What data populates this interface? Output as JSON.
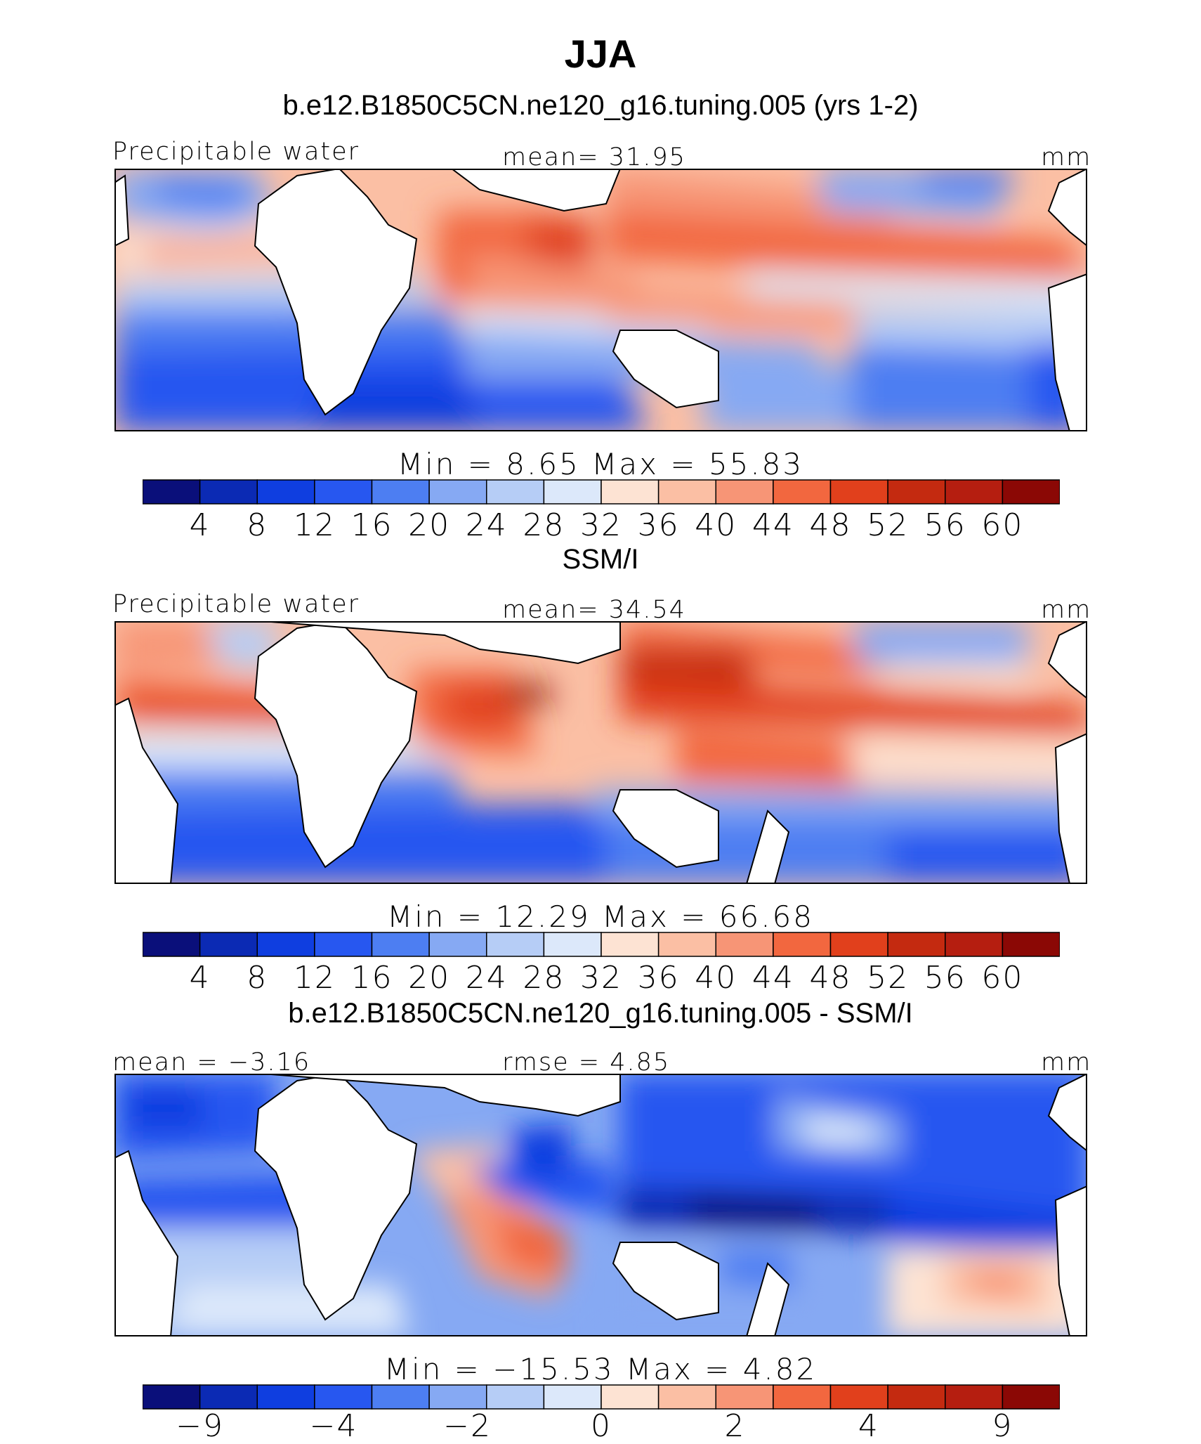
{
  "title": "JJA",
  "chart_data": [
    {
      "type": "heatmap",
      "title": "b.e12.B1850C5CN.ne120_g16.tuning.005 (yrs 1-2)",
      "left_label": "Precipitable water",
      "center_label": "mean=   31.95",
      "units": "mm",
      "minmax": "Min =    8.65  Max =    55.83",
      "min": 8.65,
      "max": 55.83,
      "mean": 31.95,
      "colorbar_ticks": [
        "4",
        "8",
        "12",
        "16",
        "20",
        "24",
        "28",
        "32",
        "36",
        "40",
        "44",
        "48",
        "52",
        "56",
        "60"
      ],
      "colorbar_colors": [
        "#0a0f7a",
        "#0b2ab4",
        "#0f3ee0",
        "#2757f0",
        "#4d7ef2",
        "#86a9f3",
        "#b6cdf6",
        "#dce8fa",
        "#fde3d3",
        "#fbbfa4",
        "#f79576",
        "#f2673f",
        "#e1401c",
        "#c42a10",
        "#b51e10",
        "#8b0805"
      ]
    },
    {
      "type": "heatmap",
      "title": "SSM/I",
      "left_label": "Precipitable water",
      "center_label": "mean=   34.54",
      "units": "mm",
      "minmax": "Min =   12.29  Max =    66.68",
      "min": 12.29,
      "max": 66.68,
      "mean": 34.54,
      "colorbar_ticks": [
        "4",
        "8",
        "12",
        "16",
        "20",
        "24",
        "28",
        "32",
        "36",
        "40",
        "44",
        "48",
        "52",
        "56",
        "60"
      ],
      "colorbar_colors": [
        "#0a0f7a",
        "#0b2ab4",
        "#0f3ee0",
        "#2757f0",
        "#4d7ef2",
        "#86a9f3",
        "#b6cdf6",
        "#dce8fa",
        "#fde3d3",
        "#fbbfa4",
        "#f79576",
        "#f2673f",
        "#e1401c",
        "#c42a10",
        "#b51e10",
        "#8b0805"
      ]
    },
    {
      "type": "heatmap",
      "title": "b.e12.B1850C5CN.ne120_g16.tuning.005 - SSM/I",
      "left_label": "mean =   −3.16",
      "center_label": "rmse =    4.85",
      "units": "mm",
      "minmax": "Min =  −15.53  Max =     4.82",
      "min": -15.53,
      "max": 4.82,
      "mean": -3.16,
      "rmse": 4.85,
      "colorbar_ticks": [
        "−9",
        "",
        "−4",
        "",
        "−2",
        "",
        "0",
        "",
        "2",
        "",
        "4",
        "",
        "9"
      ],
      "colorbar_colors": [
        "#0a0f7a",
        "#0b2ab4",
        "#0f3ee0",
        "#2757f0",
        "#4d7ef2",
        "#86a9f3",
        "#b6cdf6",
        "#dce8fa",
        "#fde3d3",
        "#fbbfa4",
        "#f79576",
        "#f2673f",
        "#e1401c",
        "#c42a10",
        "#b51e10",
        "#8b0805"
      ]
    }
  ]
}
